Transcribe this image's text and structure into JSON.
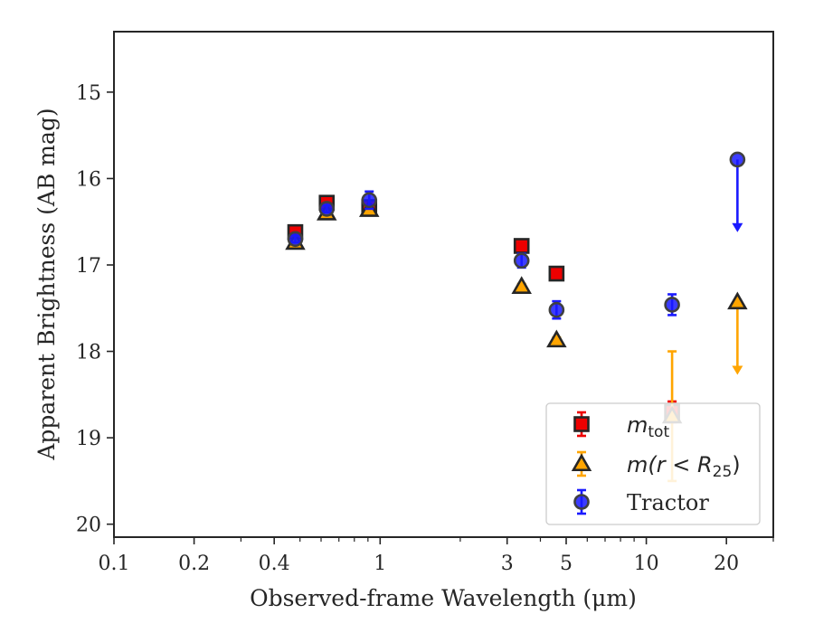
{
  "chart_data": {
    "type": "scatter",
    "xlabel": "Observed-frame Wavelength (μm)",
    "ylabel": "Apparent Brightness (AB mag)",
    "x_scale": "log",
    "xlim": [
      0.1,
      30
    ],
    "ylim": [
      20.15,
      14.3
    ],
    "y_inverted": true,
    "x_ticks": [
      {
        "value": 0.1,
        "label": "0.1"
      },
      {
        "value": 0.2,
        "label": "0.2"
      },
      {
        "value": 0.4,
        "label": "0.4"
      },
      {
        "value": 1,
        "label": "1"
      },
      {
        "value": 3,
        "label": "3"
      },
      {
        "value": 5,
        "label": "5"
      },
      {
        "value": 10,
        "label": "10"
      },
      {
        "value": 20,
        "label": "20"
      }
    ],
    "y_ticks": [
      {
        "value": 15,
        "label": "15"
      },
      {
        "value": 16,
        "label": "16"
      },
      {
        "value": 17,
        "label": "17"
      },
      {
        "value": 18,
        "label": "18"
      },
      {
        "value": 19,
        "label": "19"
      },
      {
        "value": 20,
        "label": "20"
      }
    ],
    "grid": false,
    "legend_position": "bottom-right",
    "series": [
      {
        "key": "mtot",
        "marker": "square",
        "color": "#ee0000",
        "edge": "#262626",
        "points": [
          {
            "x": 0.48,
            "y": 16.62,
            "err": 0.06
          },
          {
            "x": 0.63,
            "y": 16.28,
            "err": 0.06
          },
          {
            "x": 0.91,
            "y": 16.33,
            "err": 0.06
          },
          {
            "x": 3.4,
            "y": 16.78,
            "err": 0.05
          },
          {
            "x": 4.6,
            "y": 17.1,
            "err": 0.05
          },
          {
            "x": 12.5,
            "y": 18.7,
            "err": 0.12
          }
        ]
      },
      {
        "key": "mr25",
        "marker": "triangle",
        "color": "#ffa500",
        "edge": "#262626",
        "points": [
          {
            "x": 0.48,
            "y": 16.74,
            "err": 0.03
          },
          {
            "x": 0.63,
            "y": 16.4,
            "err": 0.03
          },
          {
            "x": 0.91,
            "y": 16.36,
            "err": 0.03
          },
          {
            "x": 3.4,
            "y": 17.25,
            "err": 0.03
          },
          {
            "x": 4.6,
            "y": 17.87,
            "err": 0.03
          },
          {
            "x": 12.5,
            "y": 18.75,
            "err_low": 0.75,
            "err_high": 0.75
          },
          {
            "x": 22,
            "y": 17.43,
            "upper_limit_to": 18.25
          }
        ]
      },
      {
        "key": "tractor",
        "marker": "circle",
        "color": "#1a1aff",
        "edge": "#404040",
        "points": [
          {
            "x": 0.48,
            "y": 16.7,
            "err": 0.04
          },
          {
            "x": 0.63,
            "y": 16.35,
            "err": 0.04
          },
          {
            "x": 0.91,
            "y": 16.25,
            "err": 0.1
          },
          {
            "x": 3.4,
            "y": 16.95,
            "err": 0.08
          },
          {
            "x": 4.6,
            "y": 17.52,
            "err": 0.1
          },
          {
            "x": 12.5,
            "y": 17.46,
            "err": 0.12
          },
          {
            "x": 22,
            "y": 15.78,
            "upper_limit_to": 16.6
          }
        ]
      }
    ],
    "legend": [
      {
        "key": "mtot",
        "text": "m",
        "sub": "tot",
        "style": "math-sub"
      },
      {
        "key": "mr25",
        "text": "m(r < R",
        "sub": "25",
        "tail": ")",
        "style": "math-sub-tail"
      },
      {
        "key": "tractor",
        "text": "Tractor",
        "style": "plain"
      }
    ]
  }
}
